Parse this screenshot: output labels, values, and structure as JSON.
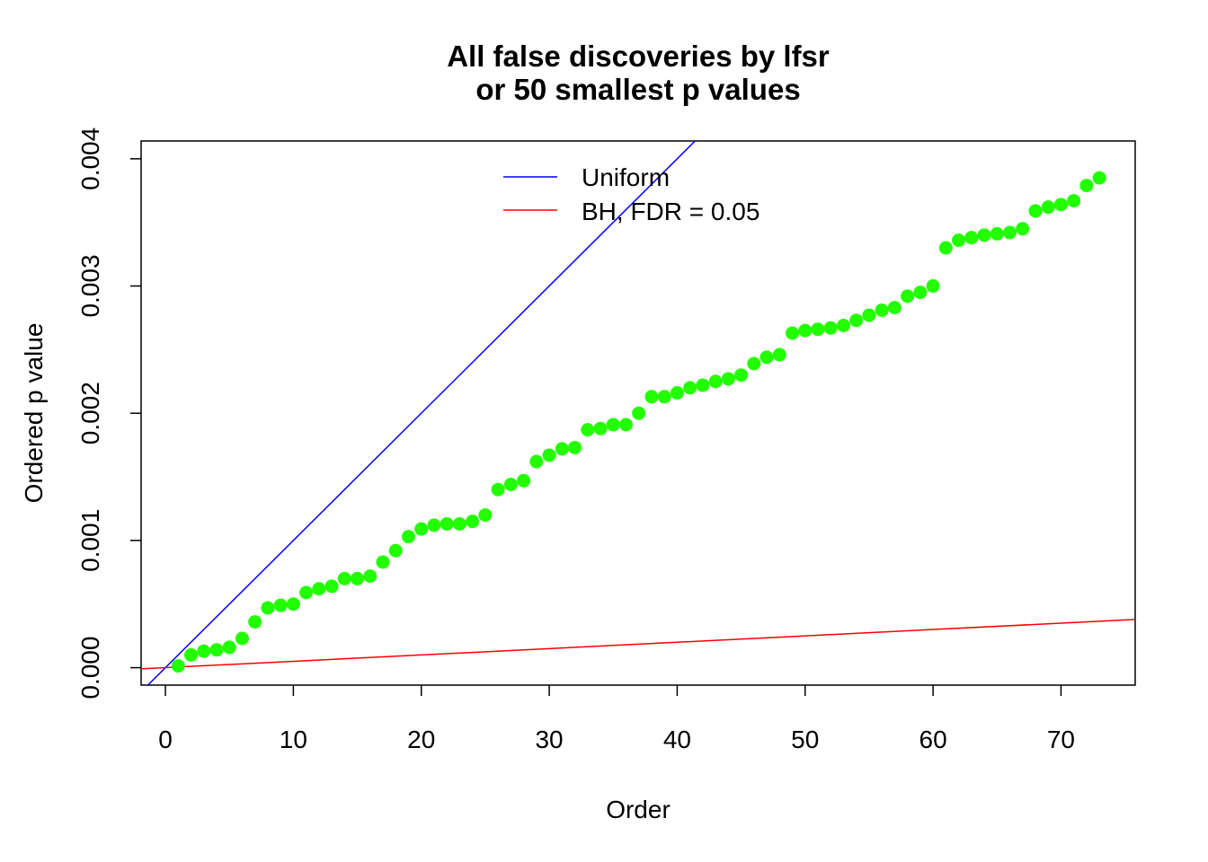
{
  "chart_data": {
    "type": "scatter",
    "title": [
      "All false discoveries by lfsr",
      "or 50 smallest p values"
    ],
    "xlabel": "Order",
    "ylabel": "Ordered p value",
    "xlim": [
      -1.9,
      75.8
    ],
    "ylim": [
      -0.000137,
      0.00414
    ],
    "xticks": [
      0,
      10,
      20,
      30,
      40,
      50,
      60,
      70
    ],
    "xtick_labels": [
      "0",
      "10",
      "20",
      "30",
      "40",
      "50",
      "60",
      "70"
    ],
    "yticks": [
      0,
      0.001,
      0.002,
      0.003,
      0.004
    ],
    "ytick_labels": [
      "0.000",
      "0.001",
      "0.002",
      "0.003",
      "0.004"
    ],
    "grid": false,
    "legend": {
      "position": "top-center",
      "entries": [
        {
          "label": "Uniform",
          "color": "#0000FF"
        },
        {
          "label": "BH, FDR = 0.05",
          "color": "#FF0000"
        }
      ]
    },
    "lines": [
      {
        "name": "Uniform",
        "color": "#0000FF",
        "intercept": 0,
        "slope": 0.0001
      },
      {
        "name": "BH, FDR = 0.05",
        "color": "#FF0000",
        "intercept": 0,
        "slope": 5e-06
      }
    ],
    "points_color": "#22FF00",
    "x": [
      1,
      2,
      3,
      4,
      5,
      6,
      7,
      8,
      9,
      10,
      11,
      12,
      13,
      14,
      15,
      16,
      17,
      18,
      19,
      20,
      21,
      22,
      23,
      24,
      25,
      26,
      27,
      28,
      29,
      30,
      31,
      32,
      33,
      34,
      35,
      36,
      37,
      38,
      39,
      40,
      41,
      42,
      43,
      44,
      45,
      46,
      47,
      48,
      49,
      50,
      51,
      52,
      53,
      54,
      55,
      56,
      57,
      58,
      59,
      60,
      61,
      62,
      63,
      64,
      65,
      66,
      67,
      68,
      69,
      70,
      71,
      72,
      73
    ],
    "y": [
      1.4e-05,
      0.0001,
      0.00013,
      0.00014,
      0.00016,
      0.00023,
      0.00036,
      0.00047,
      0.00049,
      0.0005,
      0.00059,
      0.00062,
      0.00064,
      0.0007,
      0.0007,
      0.00072,
      0.00083,
      0.00092,
      0.00103,
      0.00109,
      0.00112,
      0.00113,
      0.00113,
      0.00115,
      0.0012,
      0.0014,
      0.00144,
      0.00147,
      0.00162,
      0.00167,
      0.00172,
      0.00173,
      0.00187,
      0.00188,
      0.00191,
      0.00191,
      0.002,
      0.00213,
      0.00213,
      0.00216,
      0.0022,
      0.00222,
      0.00225,
      0.00227,
      0.0023,
      0.00239,
      0.00244,
      0.00246,
      0.00263,
      0.00265,
      0.00266,
      0.00267,
      0.00269,
      0.00273,
      0.00277,
      0.00281,
      0.00283,
      0.00292,
      0.00295,
      0.003,
      0.0033,
      0.00336,
      0.00338,
      0.0034,
      0.00341,
      0.00342,
      0.00345,
      0.00359,
      0.00362,
      0.00364,
      0.00367,
      0.00379,
      0.00385
    ]
  }
}
